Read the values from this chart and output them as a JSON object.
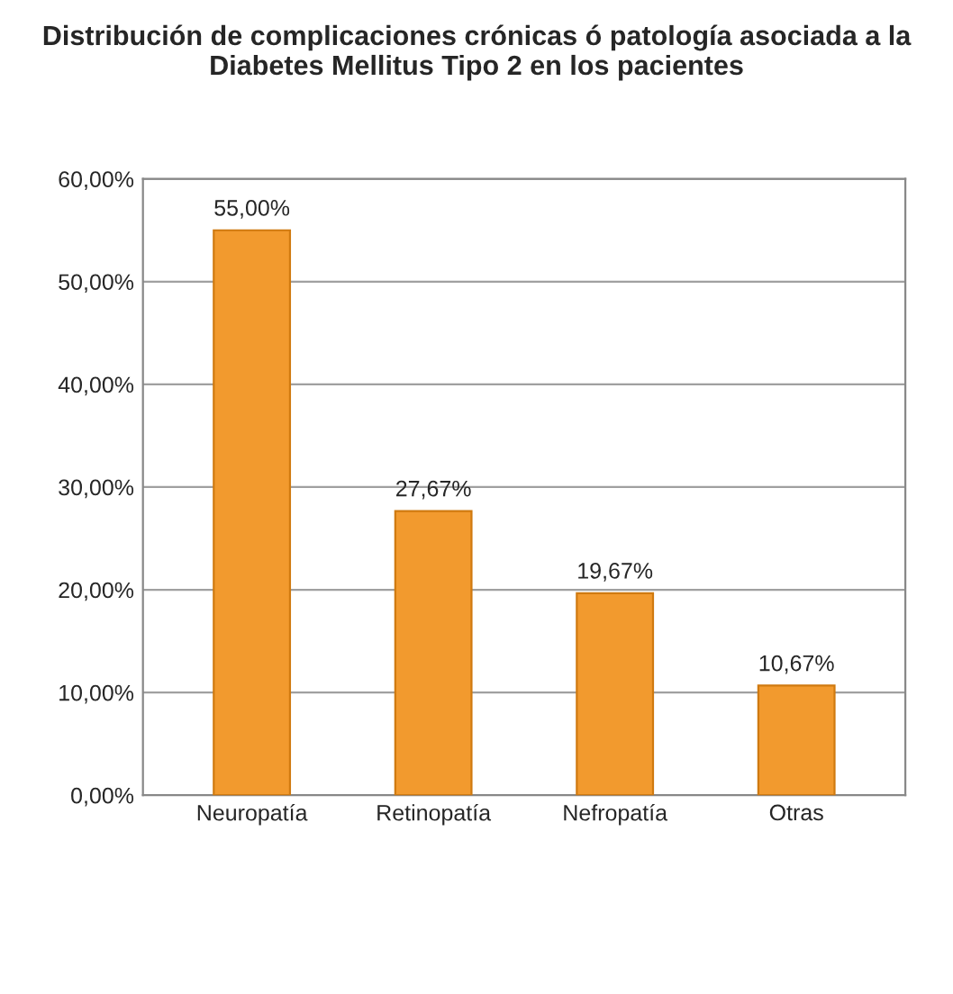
{
  "chart_data": {
    "type": "bar",
    "title": "Distribución de complicaciones crónicas ó patología asociada a la Diabetes Mellitus Tipo 2 en los pacientes",
    "categories": [
      "Neuropatía",
      "Retinopatía",
      "Nefropatía",
      "Otras"
    ],
    "values": [
      55.0,
      27.67,
      19.67,
      10.67
    ],
    "value_labels": [
      "55,00%",
      "27,67%",
      "19,67%",
      "10,67%"
    ],
    "color": "#f29a2e",
    "ylim": [
      0,
      60
    ],
    "yticks": [
      {
        "value": 0,
        "label": "0,00%"
      },
      {
        "value": 10,
        "label": "10,00%"
      },
      {
        "value": 20,
        "label": "20,00%"
      },
      {
        "value": 30,
        "label": "30,00%"
      },
      {
        "value": 40,
        "label": "40,00%"
      },
      {
        "value": 50,
        "label": "50,00%"
      },
      {
        "value": 60,
        "label": "60,00%"
      }
    ],
    "grid": "y",
    "legend": false
  }
}
